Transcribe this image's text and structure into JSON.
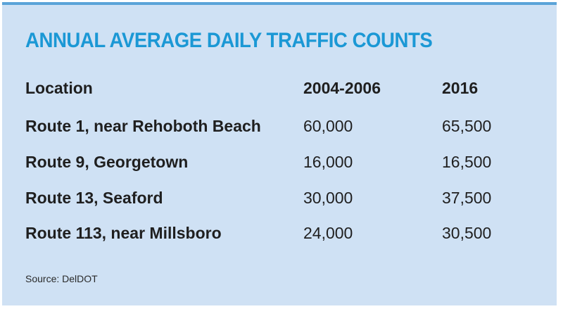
{
  "chart_data": {
    "type": "table",
    "title": "ANNUAL AVERAGE DAILY TRAFFIC COUNTS",
    "columns": [
      "Location",
      "2004-2006",
      "2016"
    ],
    "rows": [
      [
        "Route 1, near Rehoboth Beach",
        "60,000",
        "65,500"
      ],
      [
        "Route 9, Georgetown",
        "16,000",
        "16,500"
      ],
      [
        "Route 13, Seaford",
        "30,000",
        "37,500"
      ],
      [
        "Route 113, near Millsboro",
        "24,000",
        "30,500"
      ]
    ],
    "source": "Source: DelDOT",
    "colors": {
      "background": "#cfe1f4",
      "title": "#1b98d5",
      "accent_rule": "#5aa3d8",
      "text": "#1f1f1f"
    }
  }
}
